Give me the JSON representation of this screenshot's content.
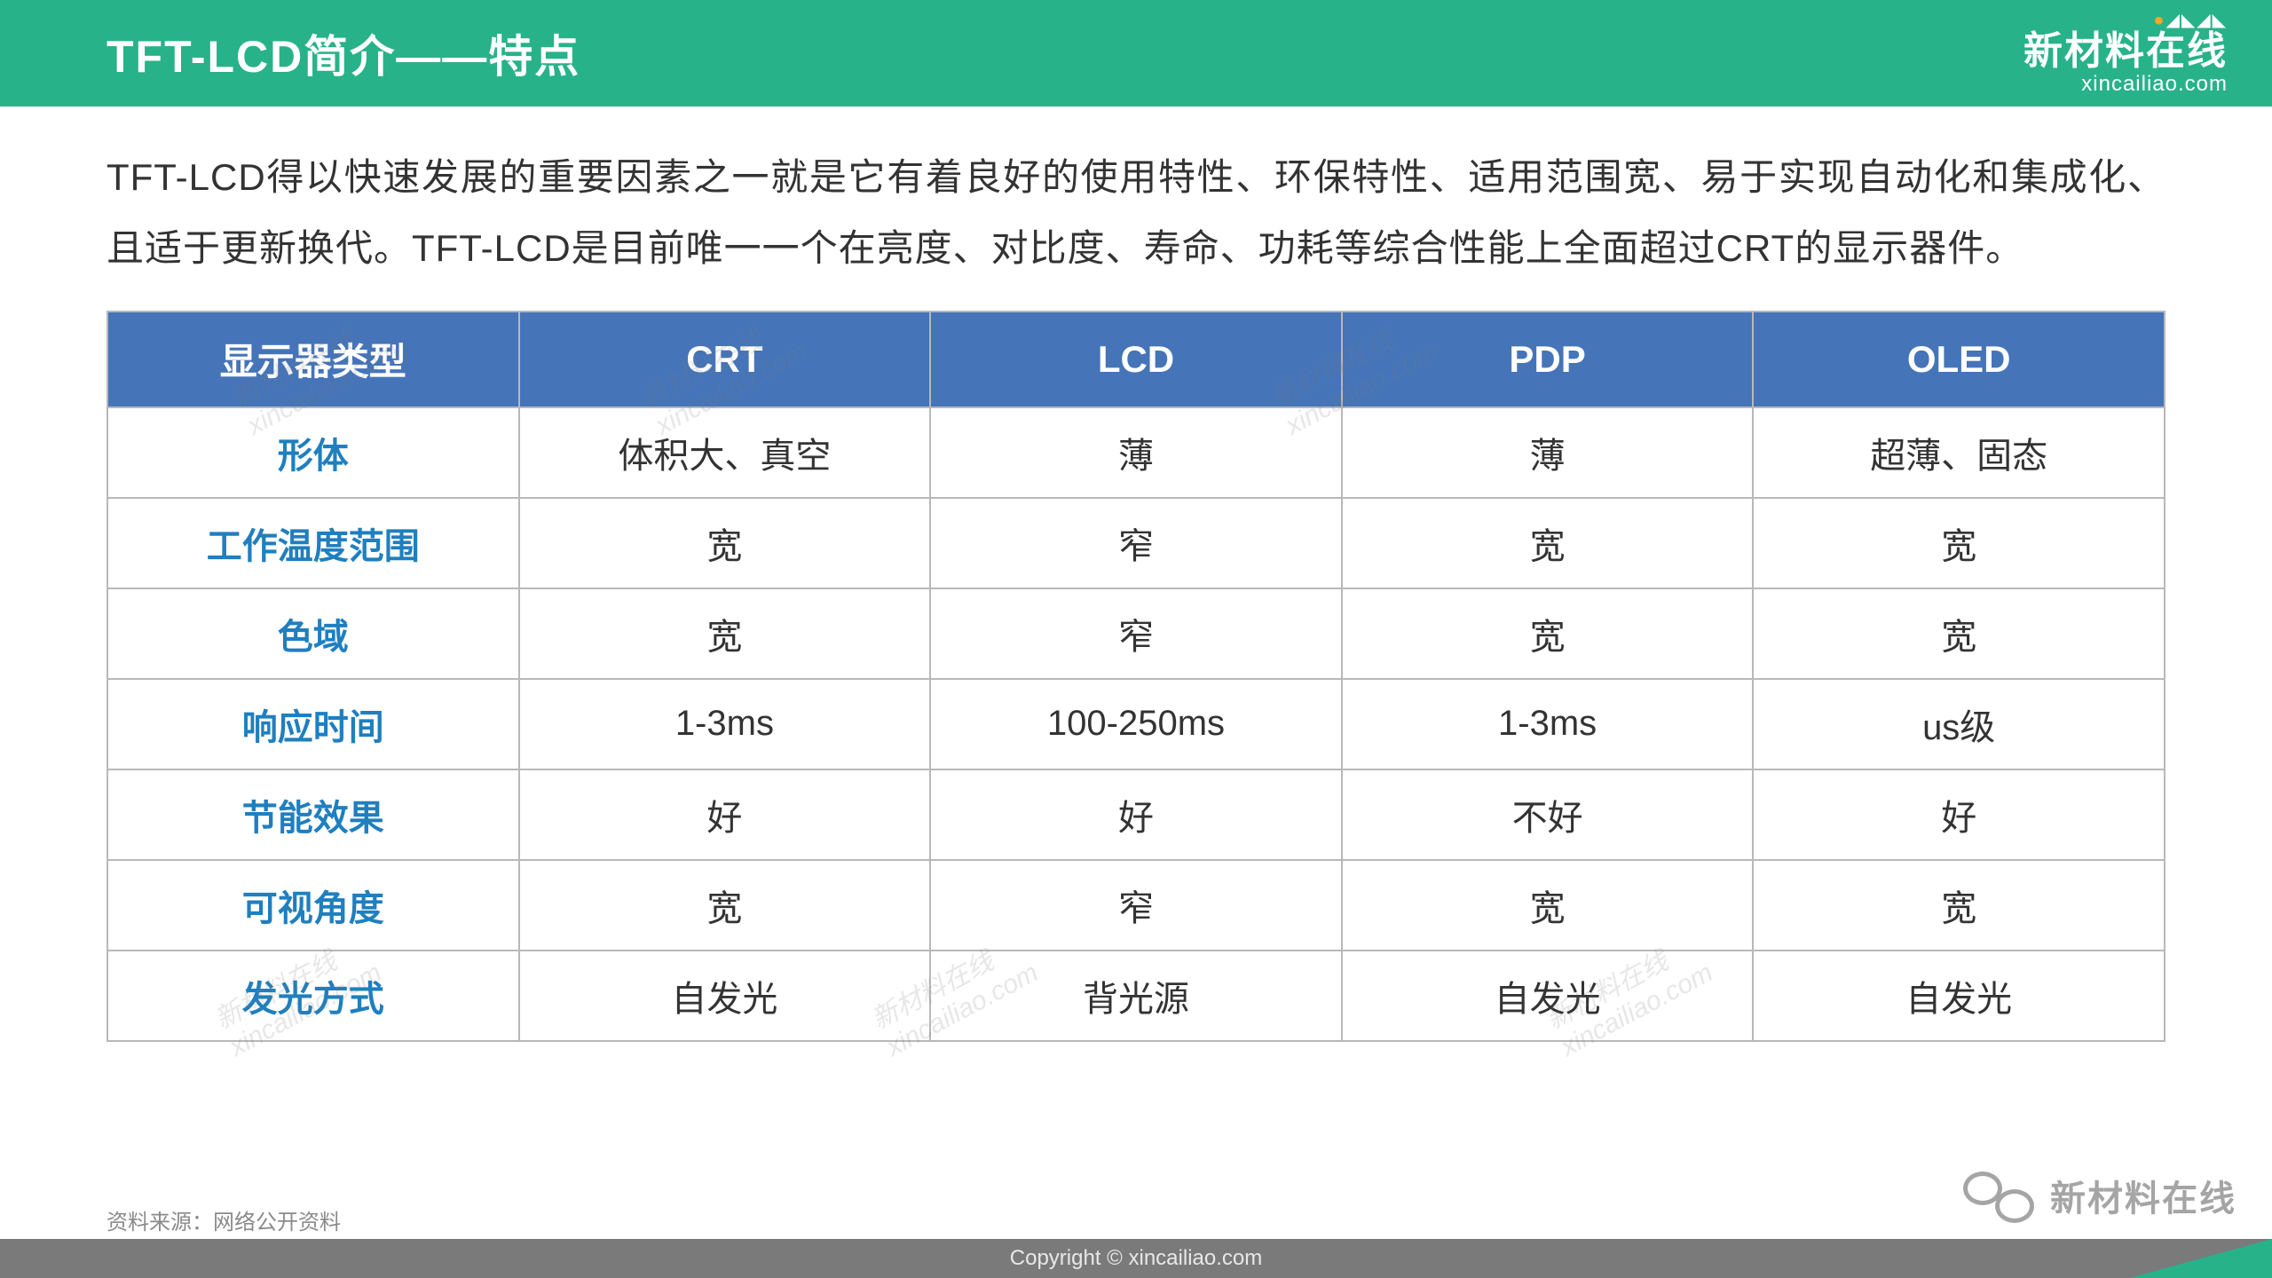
{
  "header": {
    "title": "TFT-LCD简介——特点",
    "logo_cn": "新材料在线",
    "logo_en": "xincailiao.com"
  },
  "intro": "TFT-LCD得以快速发展的重要因素之一就是它有着良好的使用特性、环保特性、适用范围宽、易于实现自动化和集成化、且适于更新换代。TFT-LCD是目前唯一一个在亮度、对比度、寿命、功耗等综合性能上全面超过CRT的显示器件。",
  "table": {
    "type": "table",
    "header_bg": "#4574b9",
    "header_fg": "#ffffff",
    "rowheader_fg": "#1f7fbf",
    "cell_fg": "#333333",
    "border_color": "#b8b8b8",
    "columns": [
      "显示器类型",
      "CRT",
      "LCD",
      "PDP",
      "OLED"
    ],
    "rows": [
      [
        "形体",
        "体积大、真空",
        "薄",
        "薄",
        "超薄、固态"
      ],
      [
        "工作温度范围",
        "宽",
        "窄",
        "宽",
        "宽"
      ],
      [
        "色域",
        "宽",
        "窄",
        "宽",
        "宽"
      ],
      [
        "响应时间",
        "1-3ms",
        "100-250ms",
        "1-3ms",
        "us级"
      ],
      [
        "节能效果",
        "好",
        "好",
        "不好",
        "好"
      ],
      [
        "可视角度",
        "宽",
        "窄",
        "宽",
        "宽"
      ],
      [
        "发光方式",
        "自发光",
        "背光源",
        "自发光",
        "自发光"
      ]
    ]
  },
  "source_label": "资料来源：网络公开资料",
  "copyright": "Copyright © xincailiao.com",
  "watermark_text": "新材料在线",
  "diag_watermark_line1": "新材料在线",
  "diag_watermark_line2": "xincailiao.com",
  "colors": {
    "brand_green": "#28b28a",
    "header_blue": "#4574b9",
    "link_blue": "#1f7fbf",
    "text": "#333333",
    "footer_bg": "#7a7a7a"
  }
}
